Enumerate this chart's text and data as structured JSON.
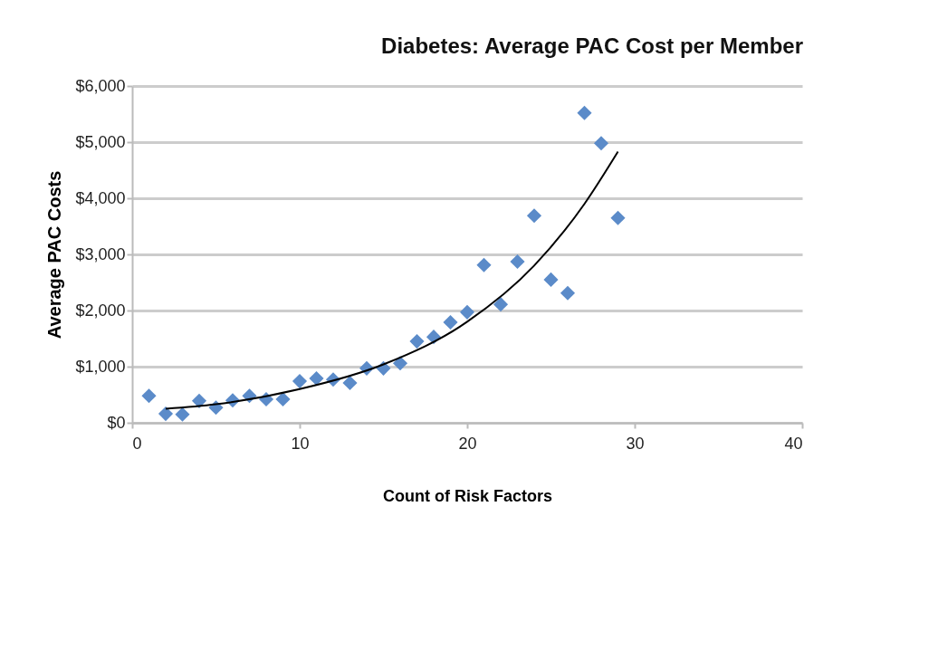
{
  "chart_data": {
    "type": "scatter",
    "title": "Diabetes: Average PAC Cost per Member",
    "xlabel": "Count of Risk Factors",
    "ylabel": "Average PAC Costs",
    "xlim": [
      0,
      40
    ],
    "xticks": [
      0,
      10,
      20,
      30,
      40
    ],
    "ylim": [
      0,
      6000
    ],
    "yticks": [
      {
        "value": 0,
        "label": "$0"
      },
      {
        "value": 1000,
        "label": "$1,000"
      },
      {
        "value": 2000,
        "label": "$2,000"
      },
      {
        "value": 3000,
        "label": "$3,000"
      },
      {
        "value": 4000,
        "label": "$4,000"
      },
      {
        "value": 5000,
        "label": "$5,000"
      },
      {
        "value": 6000,
        "label": "$6,000"
      }
    ],
    "grid": "y",
    "marker": "diamond",
    "series": [
      {
        "type": "scatter",
        "color": "#5b8bc9",
        "x": [
          1,
          2,
          3,
          4,
          5,
          6,
          7,
          8,
          9,
          10,
          11,
          12,
          13,
          14,
          15,
          16,
          17,
          18,
          19,
          20,
          21,
          22,
          23,
          24,
          25,
          26,
          27,
          28,
          29
        ],
        "values": [
          480,
          160,
          150,
          390,
          270,
          400,
          480,
          420,
          420,
          740,
          790,
          770,
          710,
          970,
          970,
          1060,
          1450,
          1530,
          1790,
          1970,
          2810,
          2110,
          2870,
          3690,
          2550,
          2310,
          5520,
          4980,
          3650
        ]
      },
      {
        "type": "line",
        "color": "#000000",
        "marker": "none",
        "x": [
          2,
          5,
          10,
          15,
          20,
          24,
          27,
          29
        ],
        "values": [
          250,
          330,
          600,
          1040,
          1800,
          2800,
          3900,
          4830
        ]
      }
    ]
  }
}
